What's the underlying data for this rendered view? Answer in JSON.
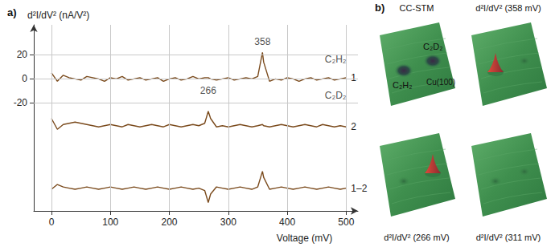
{
  "chart_data": {
    "type": "line",
    "title": "a)",
    "y_label": "d²I/dV² (nA/V²)",
    "x_label": "Voltage (mV)",
    "x": [
      0,
      10,
      20,
      30,
      40,
      50,
      60,
      70,
      80,
      90,
      100,
      110,
      120,
      130,
      140,
      150,
      160,
      170,
      180,
      190,
      200,
      210,
      220,
      230,
      240,
      250,
      260,
      266,
      270,
      280,
      290,
      300,
      310,
      320,
      330,
      340,
      350,
      358,
      360,
      370,
      380,
      390,
      400,
      410,
      420,
      430,
      440,
      450,
      460,
      470,
      480,
      490,
      500
    ],
    "series": [
      {
        "name": "1",
        "color": "#7a4a1c",
        "values": [
          5,
          -2,
          3,
          1,
          0,
          -1,
          2,
          1,
          0,
          -2,
          1,
          0,
          2,
          -1,
          0,
          1,
          -1,
          0,
          1,
          -2,
          0,
          1,
          -1,
          0,
          2,
          0,
          1,
          1,
          0,
          -1,
          0,
          1,
          -1,
          0,
          1,
          0,
          2,
          22,
          14,
          -2,
          0,
          -1,
          1,
          0,
          -2,
          0,
          1,
          -1,
          0,
          1,
          -1,
          0,
          1
        ]
      },
      {
        "name": "2",
        "color": "#7a4a1c",
        "values": [
          -33,
          -42,
          -38,
          -37,
          -36,
          -37,
          -38,
          -39,
          -40,
          -39,
          -38,
          -39,
          -40,
          -38,
          -39,
          -40,
          -39,
          -38,
          -39,
          -40,
          -38,
          -39,
          -40,
          -39,
          -38,
          -39,
          -37,
          -27,
          -33,
          -40,
          -39,
          -40,
          -39,
          -38,
          -39,
          -40,
          -39,
          -38,
          -39,
          -40,
          -39,
          -38,
          -39,
          -40,
          -39,
          -38,
          -39,
          -40,
          -38,
          -39,
          -40,
          -39,
          -40
        ]
      },
      {
        "name": "1–2",
        "color": "#7a4a1c",
        "values": [
          -92,
          -88,
          -90,
          -91,
          -92,
          -91,
          -90,
          -91,
          -92,
          -91,
          -90,
          -91,
          -92,
          -91,
          -90,
          -91,
          -92,
          -91,
          -90,
          -91,
          -92,
          -91,
          -90,
          -91,
          -92,
          -91,
          -93,
          -103,
          -96,
          -90,
          -91,
          -92,
          -91,
          -90,
          -91,
          -92,
          -90,
          -77,
          -82,
          -92,
          -91,
          -90,
          -91,
          -92,
          -91,
          -90,
          -91,
          -92,
          -91,
          -90,
          -91,
          -92,
          -91
        ]
      }
    ],
    "annotations": [
      {
        "text": "358",
        "x": 358,
        "y": 31
      },
      {
        "text": "C₂H₂",
        "x": 482,
        "y": 16
      },
      {
        "text": "266",
        "x": 266,
        "y": -10
      },
      {
        "text": "C₂D₂",
        "x": 482,
        "y": -14
      }
    ],
    "xlim": [
      -30,
      520
    ],
    "xticks": [
      0,
      100,
      200,
      300,
      400,
      500
    ],
    "ylim": [
      -110,
      45
    ],
    "yticks": [
      -20,
      0,
      20
    ],
    "grid": true
  },
  "panel_b": {
    "label": "b)",
    "tiles": [
      {
        "title": "CC-STM",
        "labels": [
          "C₂H₂",
          "C₂D₂",
          "Cu(100)"
        ]
      },
      {
        "title": "d²I/dV² (358 mV)"
      },
      {
        "title": "d²I/dV² (266 mV)"
      },
      {
        "title": "d²I/dV² (311 mV)"
      }
    ]
  }
}
